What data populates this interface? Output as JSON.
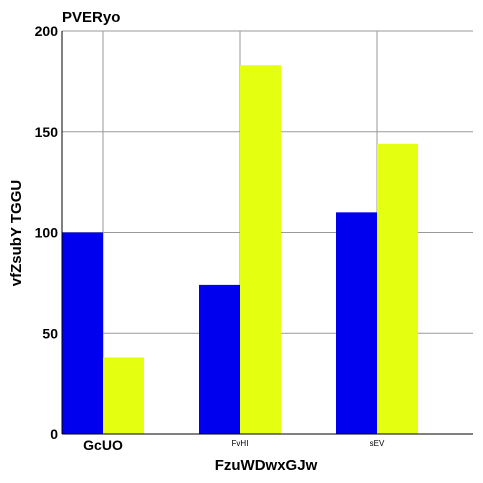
{
  "chart_data": {
    "type": "bar",
    "title": "PVERyo",
    "xlabel": "FzuWDwxGJw",
    "ylabel": "vfZsubY TGGU",
    "categories": [
      "GcUO",
      "FvHI",
      "sEV"
    ],
    "series": [
      {
        "values": [
          100,
          74,
          110
        ],
        "color": "#0000ee"
      },
      {
        "values": [
          38,
          183,
          144
        ],
        "color": "#e5ff10"
      }
    ],
    "ylim": [
      0,
      200
    ],
    "yticks": [
      0,
      50,
      100,
      150,
      200
    ],
    "grid": true,
    "legend": "none"
  }
}
